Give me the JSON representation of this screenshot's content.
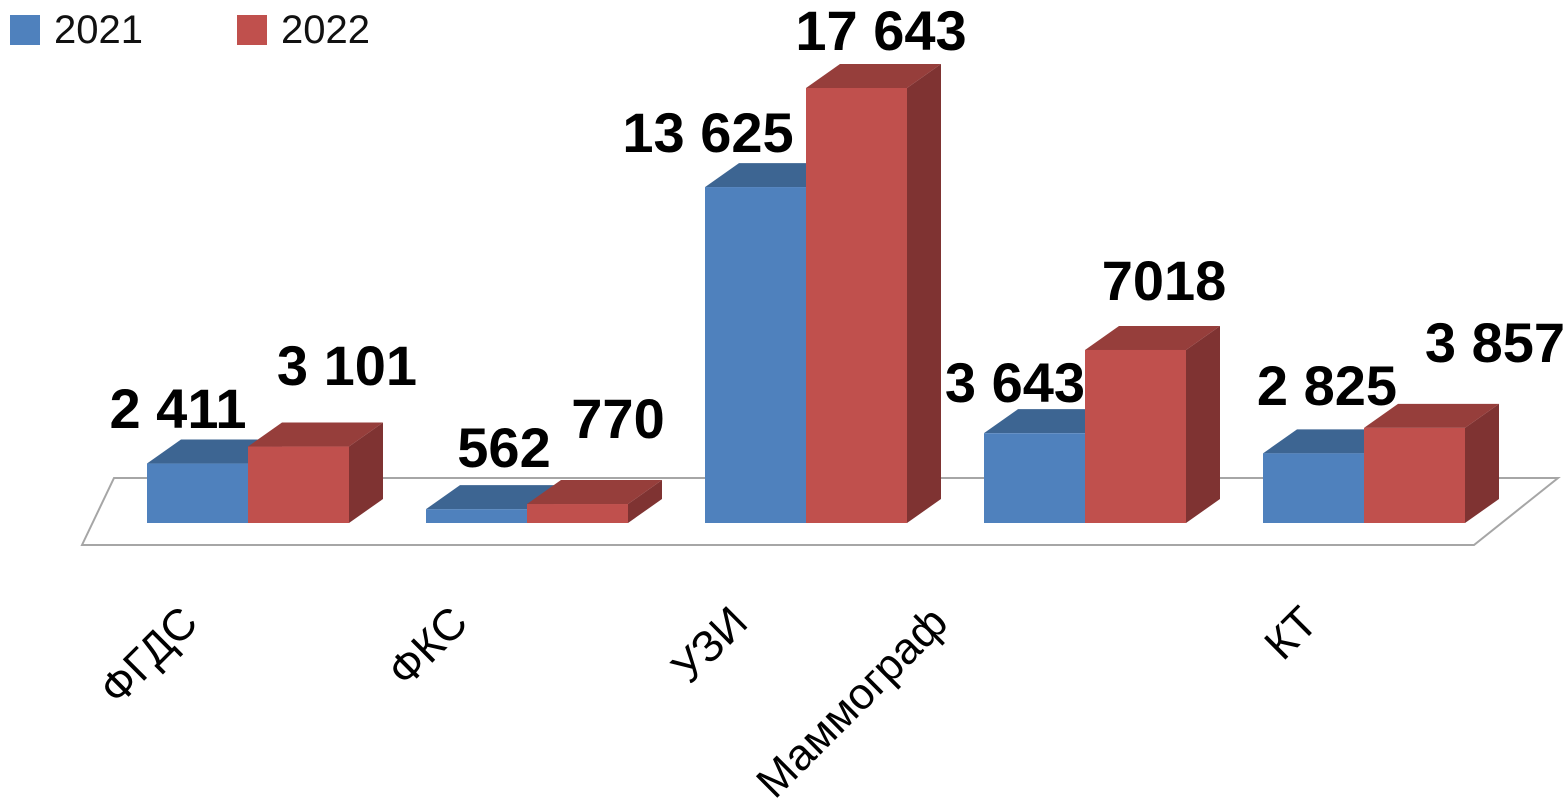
{
  "chart_data": {
    "type": "bar",
    "categories": [
      "ФГДС",
      "ФКС",
      "УЗИ",
      "Маммограф",
      "КТ"
    ],
    "series": [
      {
        "name": "2021",
        "values": [
          2411,
          562,
          13625,
          3643,
          2825
        ],
        "labels": [
          "2 411",
          "562",
          "13 625",
          "3 643",
          "2 825"
        ],
        "color": "#4f81bd",
        "top_color": "#3d6592",
        "side_color": "#395d87"
      },
      {
        "name": "2022",
        "values": [
          3101,
          770,
          17643,
          7018,
          3857
        ],
        "labels": [
          "3 101",
          "770",
          "17 643",
          "7018",
          "3 857"
        ],
        "color": "#c0504d",
        "top_color": "#963e3b",
        "side_color": "#7f3332"
      }
    ],
    "title": "",
    "xlabel": "",
    "ylabel": "",
    "ylim": [
      0,
      17643
    ],
    "grid": false,
    "three_d": true,
    "legend_position": "top-left",
    "floor_color": "#a6a6a6"
  }
}
